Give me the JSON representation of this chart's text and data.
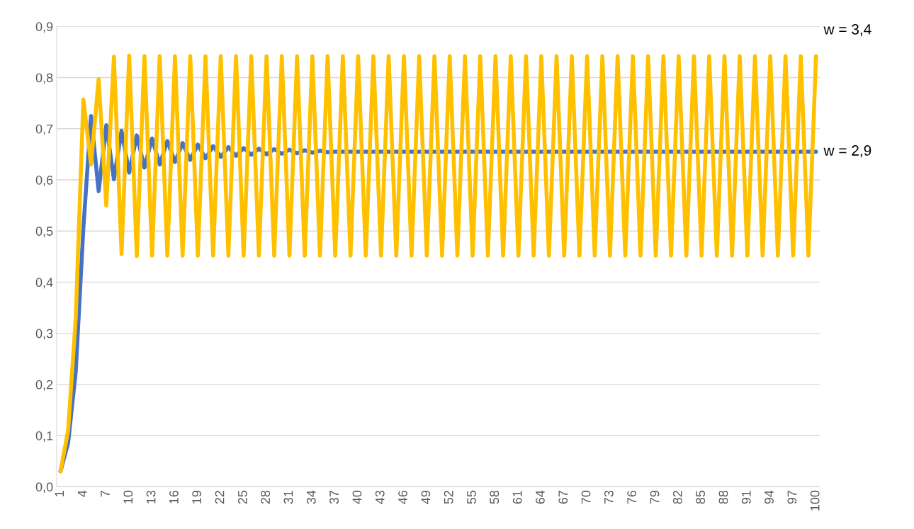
{
  "chart_data": {
    "type": "line",
    "categories": [
      "1",
      null,
      null,
      "4",
      null,
      null,
      "7",
      null,
      null,
      "10",
      null,
      null,
      "13",
      null,
      null,
      "16",
      null,
      null,
      "19",
      null,
      null,
      "22",
      null,
      null,
      "25",
      null,
      null,
      "28",
      null,
      null,
      "31",
      null,
      null,
      "34",
      null,
      null,
      "37",
      null,
      null,
      "40",
      null,
      null,
      "43",
      null,
      null,
      "46",
      null,
      null,
      "49",
      null,
      null,
      "52",
      null,
      null,
      "55",
      null,
      null,
      "58",
      null,
      null,
      "61",
      null,
      null,
      "64",
      null,
      null,
      "67",
      null,
      null,
      "70",
      null,
      null,
      "73",
      null,
      null,
      "76",
      null,
      null,
      "79",
      null,
      null,
      "82",
      null,
      null,
      "85",
      null,
      null,
      "88",
      null,
      null,
      "91",
      null,
      null,
      "94",
      null,
      null,
      "97",
      null,
      null,
      "100"
    ],
    "series": [
      {
        "name": "w = 2,9",
        "color": "#4472c4",
        "values": [
          0.03,
          0.085,
          0.225,
          0.506,
          0.725,
          0.578,
          0.707,
          0.601,
          0.696,
          0.614,
          0.687,
          0.624,
          0.681,
          0.63,
          0.676,
          0.635,
          0.672,
          0.639,
          0.669,
          0.642,
          0.666,
          0.645,
          0.664,
          0.647,
          0.662,
          0.649,
          0.661,
          0.65,
          0.66,
          0.651,
          0.659,
          0.652,
          0.658,
          0.653,
          0.657,
          0.654,
          0.655,
          0.655,
          0.655,
          0.655,
          0.655,
          0.655,
          0.655,
          0.655,
          0.655,
          0.655,
          0.655,
          0.655,
          0.655,
          0.655,
          0.655,
          0.655,
          0.655,
          0.655,
          0.655,
          0.655,
          0.655,
          0.655,
          0.655,
          0.655,
          0.655,
          0.655,
          0.655,
          0.655,
          0.655,
          0.655,
          0.655,
          0.655,
          0.655,
          0.655,
          0.655,
          0.655,
          0.655,
          0.655,
          0.655,
          0.655,
          0.655,
          0.655,
          0.655,
          0.655,
          0.655,
          0.655,
          0.655,
          0.655,
          0.655,
          0.655,
          0.655,
          0.655,
          0.655,
          0.655,
          0.655,
          0.655,
          0.655,
          0.655,
          0.655,
          0.655,
          0.655,
          0.655,
          0.655,
          0.655
        ]
      },
      {
        "name": "w = 3,4",
        "color": "#ffc000",
        "values": [
          0.03,
          0.11,
          0.33,
          0.757,
          0.63,
          0.797,
          0.55,
          0.841,
          0.455,
          0.843,
          0.451,
          0.842,
          0.452,
          0.842,
          0.452,
          0.842,
          0.452,
          0.842,
          0.452,
          0.842,
          0.452,
          0.842,
          0.452,
          0.842,
          0.452,
          0.842,
          0.452,
          0.842,
          0.452,
          0.842,
          0.452,
          0.842,
          0.452,
          0.842,
          0.452,
          0.842,
          0.452,
          0.842,
          0.452,
          0.842,
          0.452,
          0.842,
          0.452,
          0.842,
          0.452,
          0.842,
          0.452,
          0.842,
          0.452,
          0.842,
          0.452,
          0.842,
          0.452,
          0.842,
          0.452,
          0.842,
          0.452,
          0.842,
          0.452,
          0.842,
          0.452,
          0.842,
          0.452,
          0.842,
          0.452,
          0.842,
          0.452,
          0.842,
          0.452,
          0.842,
          0.452,
          0.842,
          0.452,
          0.842,
          0.452,
          0.842,
          0.452,
          0.842,
          0.452,
          0.842,
          0.452,
          0.842,
          0.452,
          0.842,
          0.452,
          0.842,
          0.452,
          0.842,
          0.452,
          0.842,
          0.452,
          0.842,
          0.452,
          0.842,
          0.452,
          0.842,
          0.452,
          0.842,
          0.452,
          0.842
        ]
      }
    ],
    "ylim": [
      0,
      0.9
    ],
    "yticks": [
      {
        "value": 0,
        "label": "0,0"
      },
      {
        "value": 0.1,
        "label": "0,1"
      },
      {
        "value": 0.2,
        "label": "0,2"
      },
      {
        "value": 0.3,
        "label": "0,3"
      },
      {
        "value": 0.4,
        "label": "0,4"
      },
      {
        "value": 0.5,
        "label": "0,5"
      },
      {
        "value": 0.6,
        "label": "0,6"
      },
      {
        "value": 0.7,
        "label": "0,7"
      },
      {
        "value": 0.8,
        "label": "0,8"
      },
      {
        "value": 0.9,
        "label": "0,9"
      }
    ],
    "grid": "y",
    "marker": "none",
    "line_style": "solid"
  }
}
